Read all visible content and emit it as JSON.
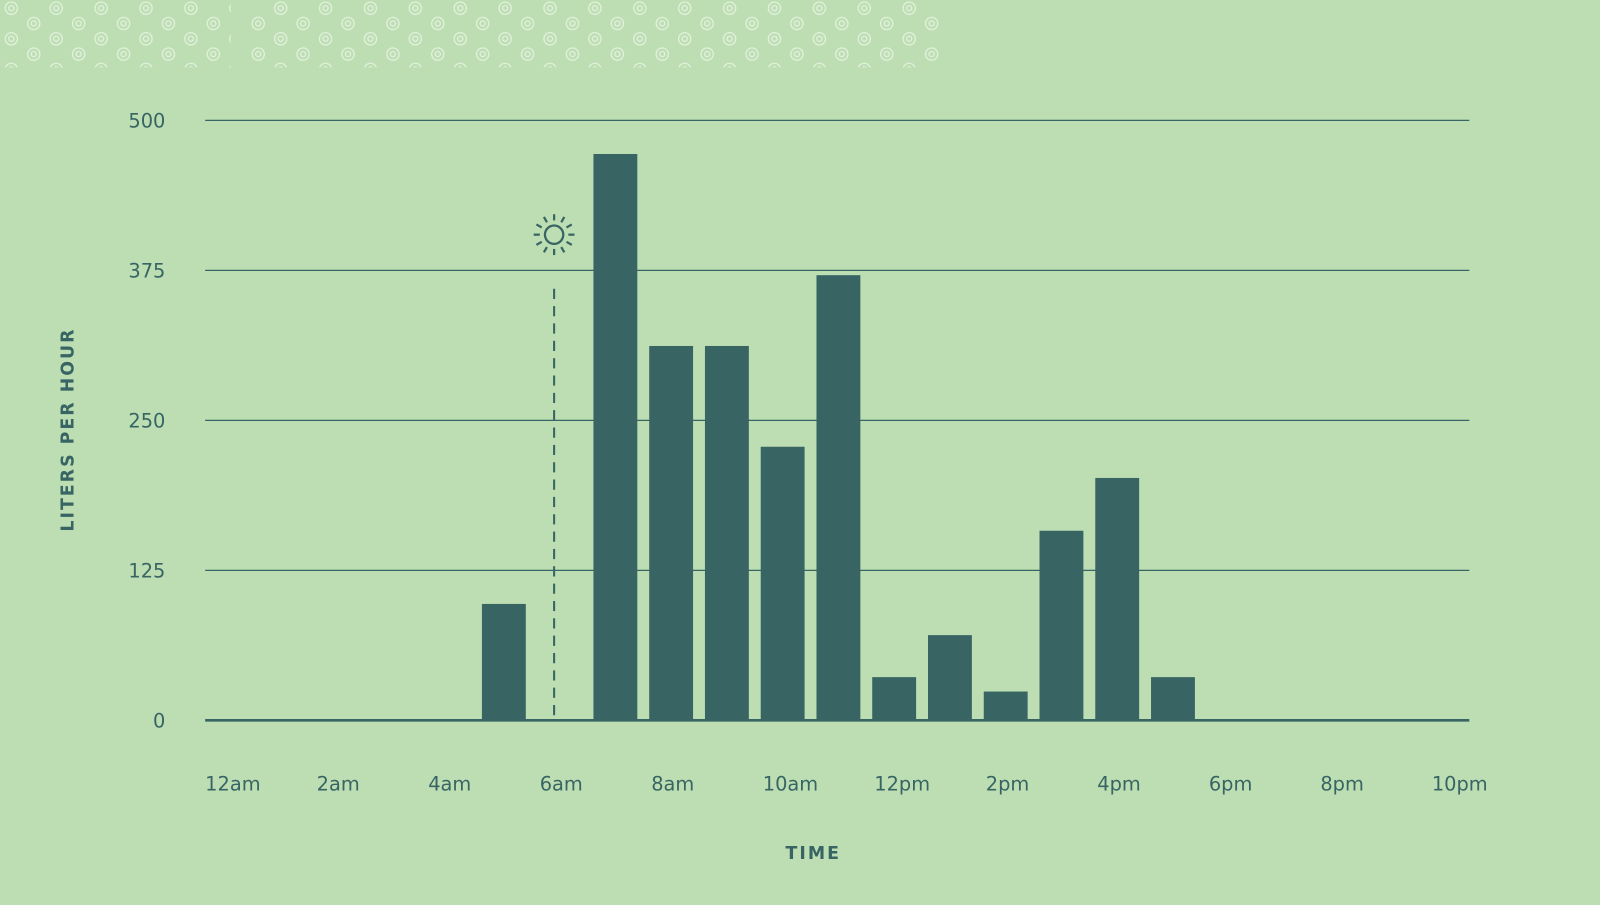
{
  "chart_data": {
    "type": "bar",
    "title": "",
    "xlabel": "TIME",
    "ylabel": "LITERS PER HOUR",
    "ylim": [
      0,
      500
    ],
    "yticks": [
      "0",
      "125",
      "250",
      "375",
      "500"
    ],
    "x_tick_labels": [
      "12am",
      "2am",
      "4am",
      "6am",
      "8am",
      "10am",
      "12pm",
      "2pm",
      "4pm",
      "6pm",
      "8pm",
      "10pm"
    ],
    "categories": [
      "12am",
      "1am",
      "2am",
      "3am",
      "4am",
      "5am",
      "6am",
      "7am",
      "8am",
      "9am",
      "10am",
      "11am",
      "12pm",
      "1pm",
      "2pm",
      "3pm",
      "4pm",
      "5pm",
      "6pm",
      "7pm",
      "8pm",
      "9pm",
      "10pm",
      "11pm"
    ],
    "values": [
      0,
      0,
      0,
      0,
      0,
      97,
      0,
      472,
      312,
      312,
      228,
      371,
      36,
      71,
      24,
      158,
      202,
      36,
      0,
      0,
      0,
      0,
      0,
      0
    ],
    "grid": true,
    "annotations": [
      {
        "icon": "sun-icon",
        "meaning": "sunrise",
        "x": "6am",
        "style": "dashed vertical line"
      }
    ],
    "colors": {
      "background": "#bcdeb2",
      "bars": "#386464",
      "text": "#386464"
    }
  }
}
